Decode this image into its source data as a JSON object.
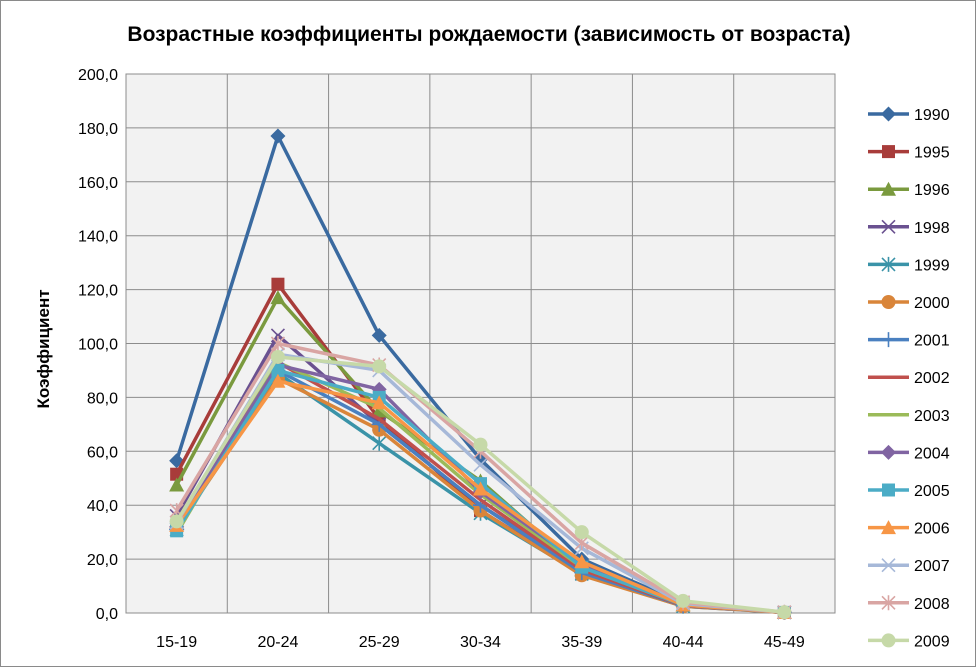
{
  "chart_data": {
    "type": "line",
    "title": "Возрастные коэффициенты рождаемости (зависимость от возраста)",
    "xlabel": "",
    "ylabel": "Коэффициент",
    "categories": [
      "15-19",
      "20-24",
      "25-29",
      "30-34",
      "35-39",
      "40-44",
      "45-49"
    ],
    "ylim": [
      0,
      200
    ],
    "yticks": [
      "0,0",
      "20,0",
      "40,0",
      "60,0",
      "80,0",
      "100,0",
      "120,0",
      "140,0",
      "160,0",
      "180,0",
      "200,0"
    ],
    "grid": true,
    "legend_position": "right",
    "plot_background": "#f2f2f2",
    "series": [
      {
        "name": "1990",
        "color": "#3a6aa0",
        "marker": "diamond",
        "values": [
          56.5,
          177.0,
          103.0,
          57.0,
          20.0,
          3.5,
          0.3
        ]
      },
      {
        "name": "1995",
        "color": "#a83c3a",
        "marker": "square",
        "values": [
          51.5,
          122.0,
          72.0,
          38.0,
          14.5,
          3.0,
          0.2
        ]
      },
      {
        "name": "1996",
        "color": "#7a9a3e",
        "marker": "triangle",
        "values": [
          47.5,
          117.0,
          75.0,
          49.0,
          16.0,
          3.0,
          0.2
        ]
      },
      {
        "name": "1998",
        "color": "#6a5190",
        "marker": "x",
        "values": [
          36.0,
          103.0,
          70.0,
          40.0,
          16.0,
          3.0,
          0.2
        ]
      },
      {
        "name": "1999",
        "color": "#3a93a8",
        "marker": "star",
        "values": [
          31.0,
          89.0,
          63.0,
          37.0,
          14.5,
          2.5,
          0.2
        ]
      },
      {
        "name": "2000",
        "color": "#d9853a",
        "marker": "circle",
        "values": [
          31.5,
          87.0,
          68.0,
          38.0,
          14.0,
          2.5,
          0.2
        ]
      },
      {
        "name": "2001",
        "color": "#4a80c0",
        "marker": "plus",
        "values": [
          31.0,
          90.0,
          70.0,
          40.0,
          15.0,
          2.7,
          0.2
        ]
      },
      {
        "name": "2002",
        "color": "#c0504d",
        "marker": "none",
        "values": [
          32.0,
          93.0,
          72.0,
          42.0,
          16.0,
          2.8,
          0.2
        ]
      },
      {
        "name": "2003",
        "color": "#9bbb59",
        "marker": "none",
        "values": [
          29.5,
          93.0,
          76.0,
          44.0,
          17.0,
          3.0,
          0.2
        ]
      },
      {
        "name": "2004",
        "color": "#8064a2",
        "marker": "diamond",
        "values": [
          32.0,
          92.0,
          83.0,
          45.0,
          18.0,
          3.0,
          0.2
        ]
      },
      {
        "name": "2005",
        "color": "#4bacc6",
        "marker": "square",
        "values": [
          30.5,
          90.0,
          80.0,
          48.0,
          17.0,
          3.0,
          0.2
        ]
      },
      {
        "name": "2006",
        "color": "#f79646",
        "marker": "triangle",
        "values": [
          32.5,
          86.0,
          78.0,
          46.0,
          19.0,
          3.0,
          0.2
        ]
      },
      {
        "name": "2007",
        "color": "#a6b8d8",
        "marker": "x",
        "values": [
          33.5,
          96.0,
          90.0,
          55.0,
          24.0,
          3.5,
          0.3
        ]
      },
      {
        "name": "2008",
        "color": "#d9a5a3",
        "marker": "star",
        "values": [
          38.0,
          100.0,
          92.0,
          60.0,
          26.0,
          4.0,
          0.3
        ]
      },
      {
        "name": "2009",
        "color": "#c6d9a8",
        "marker": "circle",
        "values": [
          34.0,
          95.0,
          91.5,
          62.5,
          30.0,
          4.5,
          0.3
        ]
      }
    ]
  }
}
